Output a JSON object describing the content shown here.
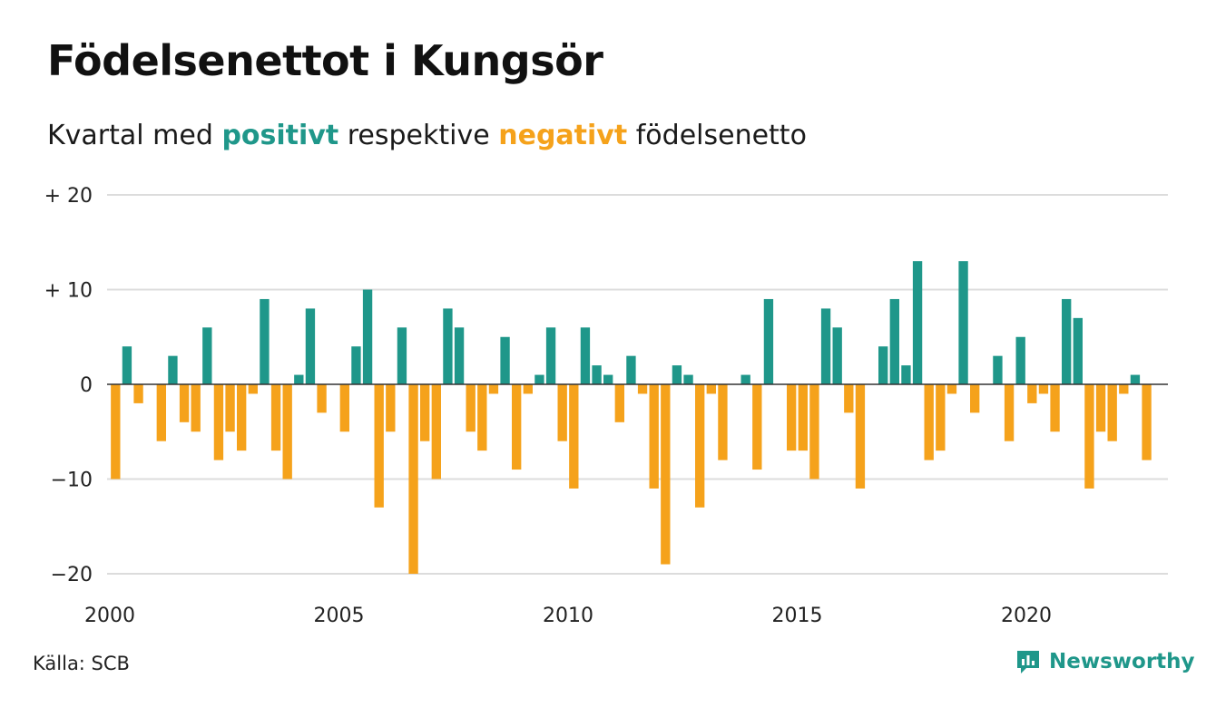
{
  "title": "Födelsenettot i Kungsör",
  "subtitle": {
    "prefix": "Kvartal med",
    "positive_word": "positivt",
    "middle": "respektive",
    "negative_word": "negativt",
    "suffix": "födelsenetto"
  },
  "colors": {
    "positive": "#1f978a",
    "negative": "#f5a21b",
    "grid": "#dcdcdc",
    "zero_line": "#333333"
  },
  "source": "Källa: SCB",
  "brand": {
    "name": "Newsworthy",
    "icon": "newsworthy-logo-icon",
    "color": "#1f978a"
  },
  "chart_data": {
    "type": "bar",
    "x_start": "2000 Q1",
    "values": [
      -10,
      4,
      -2,
      0,
      -6,
      3,
      -4,
      -5,
      6,
      -8,
      -5,
      -7,
      -1,
      9,
      -7,
      -10,
      1,
      8,
      -3,
      0,
      -5,
      4,
      10,
      -13,
      -5,
      6,
      -20,
      -6,
      -10,
      8,
      6,
      -5,
      -7,
      -1,
      5,
      -9,
      -1,
      1,
      6,
      -6,
      -11,
      6,
      2,
      1,
      -4,
      3,
      -1,
      -11,
      -19,
      2,
      1,
      -13,
      -1,
      -8,
      0,
      1,
      -9,
      9,
      0,
      -7,
      -7,
      -10,
      8,
      6,
      -3,
      -11,
      0,
      4,
      9,
      2,
      13,
      -8,
      -7,
      -1,
      13,
      -3,
      0,
      3,
      -6,
      5,
      -2,
      -1,
      -5,
      9,
      7,
      -11,
      -5,
      -6,
      -1,
      1,
      -8
    ],
    "y_ticks": [
      {
        "value": 20,
        "label": "+ 20"
      },
      {
        "value": 10,
        "label": "+ 10"
      },
      {
        "value": 0,
        "label": "0"
      },
      {
        "value": -10,
        "label": "−10"
      },
      {
        "value": -20,
        "label": "−20"
      }
    ],
    "x_ticks": [
      {
        "year": 2000,
        "label": "2000"
      },
      {
        "year": 2005,
        "label": "2005"
      },
      {
        "year": 2010,
        "label": "2010"
      },
      {
        "year": 2015,
        "label": "2015"
      },
      {
        "year": 2020,
        "label": "2020"
      }
    ],
    "ylim": [
      -20,
      20
    ],
    "xlim": [
      2000,
      2023
    ],
    "grid": true,
    "legend": "none"
  }
}
